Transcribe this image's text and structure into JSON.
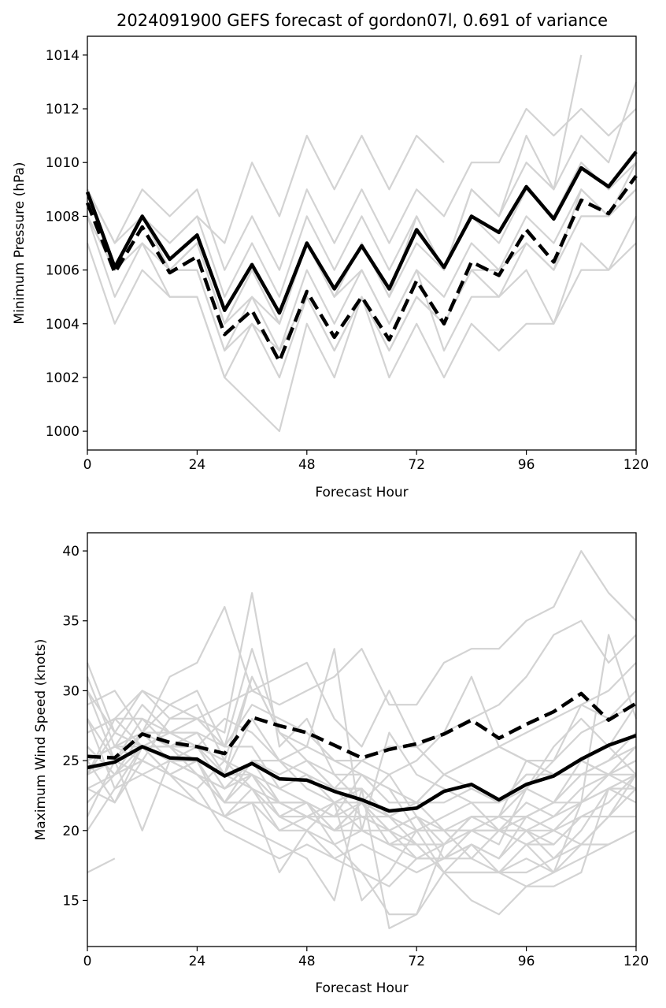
{
  "chart_data": [
    {
      "type": "line",
      "title": "2024091900 GEFS forecast of gordon07l, 0.691 of variance",
      "xlabel": "Forecast Hour",
      "ylabel": "Minimum Pressure (hPa)",
      "xlim": [
        0,
        120
      ],
      "ylim": [
        999.3,
        1014.7
      ],
      "xticks": [
        0,
        24,
        48,
        72,
        96,
        120
      ],
      "yticks": [
        1000,
        1002,
        1004,
        1006,
        1008,
        1010,
        1012,
        1014
      ],
      "grid": false,
      "legend": "none",
      "colors": {
        "members": "#d3d3d3",
        "mean": "#000000"
      },
      "x": [
        0,
        6,
        12,
        18,
        24,
        30,
        36,
        42,
        48,
        54,
        60,
        66,
        72,
        78,
        84,
        90,
        96,
        102,
        108,
        114,
        120
      ],
      "series": [
        {
          "role": "member",
          "values": [
            1009,
            1006,
            1008,
            1006,
            1007,
            1004,
            1006,
            1004,
            1007,
            1005,
            1007,
            1005,
            1007,
            1006,
            1008,
            1007,
            1009,
            1008,
            1010,
            1009,
            1010
          ]
        },
        {
          "role": "member",
          "values": [
            1009,
            1007,
            1009,
            1008,
            1009,
            1006,
            1008,
            1006,
            1009,
            1007,
            1009,
            1007,
            1009,
            1008,
            1010,
            1010,
            1012,
            1011,
            1012,
            1011,
            1012
          ]
        },
        {
          "role": "member",
          "values": [
            1008,
            1006,
            1008,
            1007,
            1008,
            1007,
            1010,
            1008,
            1011,
            1009,
            1011,
            1009,
            1011,
            1010,
            null,
            null,
            null,
            null,
            null,
            null,
            null
          ]
        },
        {
          "role": "member",
          "values": [
            1008,
            1005,
            1007,
            1005,
            1005,
            1002,
            1004,
            1002,
            1005,
            1003,
            1005,
            1003,
            1005,
            1004,
            1006,
            1005,
            1007,
            1006,
            1009,
            1008,
            1009
          ]
        },
        {
          "role": "member",
          "values": [
            1007,
            1004,
            1006,
            1005,
            1005,
            1002,
            1001,
            1000,
            1004,
            1002,
            1005,
            1002,
            1004,
            1002,
            1004,
            1003,
            1004,
            1004,
            1007,
            1006,
            1007
          ]
        },
        {
          "role": "member",
          "values": [
            1009,
            1006,
            1008,
            1006,
            1006,
            1003,
            1005,
            1003,
            1006,
            1004,
            1006,
            1004,
            1006,
            1003,
            1005,
            1005,
            1006,
            1004,
            1006,
            1006,
            1008
          ]
        },
        {
          "role": "member",
          "values": [
            1008,
            1006,
            1008,
            1006,
            1007,
            1004,
            1005,
            1004,
            1007,
            1005,
            1006,
            1004,
            1006,
            1005,
            1007,
            1006,
            1008,
            1007,
            1009,
            1008,
            1009
          ]
        },
        {
          "role": "member",
          "values": [
            1009,
            1007,
            1008,
            1007,
            1008,
            1005,
            1007,
            1005,
            1008,
            1006,
            1008,
            1006,
            1008,
            1006,
            1009,
            1008,
            1010,
            1009,
            1011,
            1010,
            1013
          ]
        },
        {
          "role": "member",
          "values": [
            1008,
            1006,
            1007,
            1006,
            1006,
            1003,
            1004,
            1003,
            1005,
            1003,
            1005,
            1003,
            1005,
            1004,
            1006,
            1006,
            1007,
            1006,
            1008,
            1008,
            1010
          ]
        },
        {
          "role": "member",
          "values": [
            1009,
            1006,
            1008,
            1006,
            1007,
            1004,
            1006,
            1004,
            1007,
            1005,
            1007,
            1005,
            1008,
            1006,
            1009,
            1008,
            1011,
            1009,
            1014,
            null,
            null
          ]
        },
        {
          "role": "mean",
          "style": "solid",
          "values": [
            1008.9,
            1006.1,
            1008.0,
            1006.4,
            1007.3,
            1004.5,
            1006.2,
            1004.4,
            1007.0,
            1005.3,
            1006.9,
            1005.3,
            1007.5,
            1006.1,
            1008.0,
            1007.4,
            1009.1,
            1007.9,
            1009.8,
            1009.1,
            1010.4
          ]
        },
        {
          "role": "mean",
          "style": "dashed",
          "values": [
            1008.5,
            1005.9,
            1007.6,
            1005.9,
            1006.5,
            1003.6,
            1004.5,
            1002.6,
            1005.2,
            1003.5,
            1005.0,
            1003.4,
            1005.6,
            1004.0,
            1006.3,
            1005.8,
            1007.5,
            1006.3,
            1008.6,
            1008.1,
            1009.5
          ]
        }
      ]
    },
    {
      "type": "line",
      "title": "",
      "xlabel": "Forecast Hour",
      "ylabel": "Maximum Wind Speed (knots)",
      "xlim": [
        0,
        120
      ],
      "ylim": [
        11.7,
        41.3
      ],
      "xticks": [
        0,
        24,
        48,
        72,
        96,
        120
      ],
      "yticks": [
        15,
        20,
        25,
        30,
        35,
        40
      ],
      "grid": false,
      "legend": "none",
      "colors": {
        "members": "#d3d3d3",
        "mean": "#000000"
      },
      "x": [
        0,
        6,
        12,
        18,
        24,
        30,
        36,
        42,
        48,
        54,
        60,
        66,
        72,
        78,
        84,
        90,
        96,
        102,
        108,
        114,
        120
      ],
      "series": [
        {
          "role": "member",
          "values": [
            17,
            18,
            null,
            null,
            null,
            null,
            null,
            null,
            null,
            null,
            null,
            null,
            null,
            null,
            null,
            null,
            null,
            null,
            null,
            null,
            null
          ]
        },
        {
          "role": "member",
          "values": [
            20,
            23,
            26,
            24,
            25,
            21,
            23,
            20,
            21,
            20,
            22,
            20,
            21,
            19,
            21,
            20,
            22,
            21,
            23,
            24,
            25
          ]
        },
        {
          "role": "member",
          "values": [
            21,
            25,
            28,
            26,
            27,
            24,
            28,
            25,
            23,
            22,
            23,
            21,
            20,
            17,
            19,
            18,
            20,
            19,
            21,
            22,
            24
          ]
        },
        {
          "role": "member",
          "values": [
            22,
            24,
            27,
            25,
            26,
            23,
            25,
            22,
            22,
            21,
            21,
            20,
            19,
            17,
            17,
            17,
            18,
            17,
            19,
            21,
            23
          ]
        },
        {
          "role": "member",
          "values": [
            24,
            27,
            30,
            28,
            29,
            25,
            24,
            21,
            20,
            18,
            17,
            16,
            18,
            19,
            20,
            21,
            20,
            18,
            20,
            23,
            22
          ]
        },
        {
          "role": "member",
          "values": [
            25,
            26,
            29,
            27,
            28,
            27,
            37,
            26,
            28,
            24,
            22,
            19,
            20,
            21,
            22,
            20,
            21,
            22,
            24,
            25,
            27
          ]
        },
        {
          "role": "member",
          "values": [
            26,
            24,
            25,
            28,
            28,
            26,
            33,
            27,
            25,
            23,
            21,
            20,
            18,
            18,
            20,
            19,
            23,
            26,
            28,
            26,
            24
          ]
        },
        {
          "role": "member",
          "values": [
            27,
            28,
            26,
            24,
            23,
            20,
            19,
            18,
            19,
            18,
            19,
            18,
            17,
            18,
            19,
            17,
            19,
            20,
            22,
            24,
            26
          ]
        },
        {
          "role": "member",
          "values": [
            28,
            23,
            24,
            23,
            22,
            21,
            22,
            20,
            20,
            19,
            20,
            19,
            18,
            18,
            18,
            17,
            17,
            18,
            19,
            21,
            24
          ]
        },
        {
          "role": "member",
          "values": [
            29,
            30,
            27,
            29,
            30,
            26,
            29,
            28,
            27,
            25,
            24,
            22,
            22,
            24,
            25,
            26,
            25,
            24,
            24,
            25,
            26
          ]
        },
        {
          "role": "member",
          "values": [
            30,
            25,
            24,
            25,
            24,
            23,
            24,
            23,
            22,
            21,
            24,
            23,
            20,
            20,
            20,
            20,
            19,
            19,
            21,
            21,
            21
          ]
        },
        {
          "role": "member",
          "values": [
            31,
            26,
            25,
            24,
            22,
            21,
            20,
            19,
            18,
            15,
            23,
            13,
            14,
            19,
            21,
            21,
            25,
            25,
            29,
            30,
            32
          ]
        },
        {
          "role": "member",
          "values": [
            32,
            27,
            26,
            26,
            26,
            25,
            23,
            21,
            21,
            20,
            21,
            21,
            22,
            24,
            25,
            26,
            27,
            28,
            29,
            28,
            29
          ]
        },
        {
          "role": "member",
          "values": [
            30,
            27,
            26,
            25,
            24,
            23,
            25,
            24,
            25,
            23,
            25,
            26,
            26,
            24,
            23,
            22,
            24,
            24,
            24,
            24,
            25
          ]
        },
        {
          "role": "member",
          "values": [
            28,
            25,
            20,
            25,
            24,
            22,
            22,
            22,
            22,
            20,
            22,
            24,
            21,
            20,
            20,
            20,
            20,
            20,
            19,
            19,
            20
          ]
        },
        {
          "role": "member",
          "values": [
            26,
            24,
            27,
            27,
            26,
            24,
            31,
            27,
            25,
            24,
            24,
            23,
            22,
            20,
            20,
            20,
            20,
            21,
            22,
            23,
            24
          ]
        },
        {
          "role": "member",
          "values": [
            25,
            22,
            26,
            25,
            25,
            22,
            24,
            22,
            21,
            20,
            20,
            19,
            19,
            17,
            17,
            17,
            16,
            16,
            17,
            23,
            24
          ]
        },
        {
          "role": "member",
          "values": [
            24,
            25,
            26,
            26,
            25,
            24,
            24,
            21,
            22,
            19,
            17,
            14,
            14,
            17,
            15,
            14,
            16,
            17,
            18,
            19,
            20
          ]
        },
        {
          "role": "member",
          "values": [
            27,
            28,
            28,
            27,
            27,
            26,
            26,
            23,
            24,
            22,
            20,
            20,
            21,
            18,
            19,
            18,
            21,
            22,
            25,
            26,
            29
          ]
        },
        {
          "role": "member",
          "values": [
            26,
            24,
            25,
            24,
            25,
            22,
            25,
            25,
            24,
            23,
            23,
            21,
            19,
            19,
            21,
            21,
            23,
            25,
            27,
            28,
            30
          ]
        },
        {
          "role": "member",
          "values": [
            25,
            26,
            27,
            26,
            24,
            22,
            22,
            22,
            21,
            21,
            22,
            21,
            22,
            22,
            23,
            22,
            24,
            24,
            25,
            24,
            23
          ]
        },
        {
          "role": "member",
          "values": [
            24,
            28,
            30,
            29,
            28,
            29,
            30,
            29,
            30,
            31,
            33,
            29,
            29,
            32,
            33,
            33,
            35,
            36,
            40,
            37,
            35
          ]
        },
        {
          "role": "member",
          "values": [
            25,
            26,
            26,
            24,
            23,
            25,
            31,
            27,
            26,
            33,
            20,
            27,
            24,
            23,
            22,
            22,
            23,
            22,
            22,
            34,
            28
          ]
        },
        {
          "role": "member",
          "values": [
            23,
            24,
            26,
            27,
            26,
            28,
            27,
            25,
            26,
            25,
            25,
            24,
            25,
            27,
            28,
            29,
            31,
            34,
            35,
            32,
            34
          ]
        },
        {
          "role": "member",
          "values": [
            26,
            24,
            27,
            31,
            32,
            36,
            30,
            31,
            32,
            28,
            26,
            30,
            26,
            27,
            31,
            26,
            25,
            24,
            25,
            24,
            24
          ]
        },
        {
          "role": "member",
          "values": [
            24,
            25,
            27,
            25,
            25,
            24,
            23,
            22,
            21,
            22,
            22,
            21,
            20,
            20,
            21,
            21,
            21,
            20,
            21,
            null,
            null
          ]
        },
        {
          "role": "member",
          "values": [
            23,
            22,
            25,
            24,
            25,
            21,
            22,
            17,
            20,
            22,
            15,
            17,
            20,
            20,
            18,
            20,
            19,
            17,
            22,
            23,
            23
          ]
        },
        {
          "role": "mean",
          "style": "solid",
          "values": [
            24.5,
            24.9,
            26.0,
            25.2,
            25.1,
            23.9,
            24.8,
            23.7,
            23.6,
            22.8,
            22.2,
            21.4,
            21.6,
            22.8,
            23.3,
            22.2,
            23.3,
            23.9,
            25.1,
            26.1,
            26.8
          ]
        },
        {
          "role": "mean",
          "style": "dashed",
          "values": [
            25.3,
            25.2,
            26.9,
            26.3,
            26.0,
            25.5,
            28.1,
            27.5,
            27.0,
            26.1,
            25.2,
            25.8,
            26.2,
            26.9,
            27.9,
            26.6,
            27.6,
            28.5,
            29.8,
            27.9,
            29.1
          ]
        }
      ]
    }
  ]
}
